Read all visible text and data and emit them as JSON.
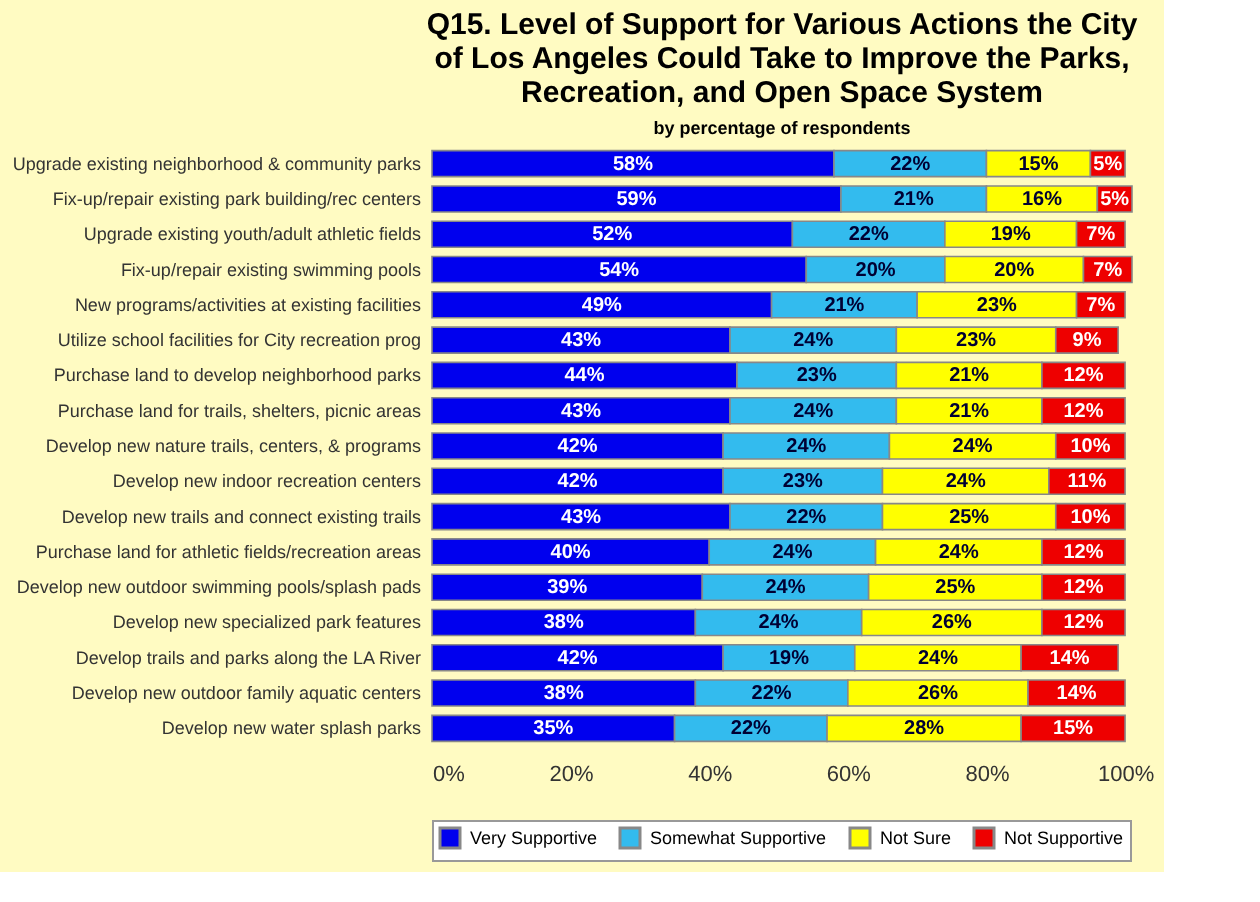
{
  "chart_data": {
    "type": "bar",
    "orientation": "horizontal",
    "stacked": true,
    "title": "Q15. Level of Support for Various Actions the City of Los Angeles Could Take to Improve the Parks, Recreation, and Open Space System",
    "subtitle": "by percentage of respondents",
    "categories": [
      "Upgrade existing neighborhood & community parks",
      "Fix-up/repair existing park building/rec centers",
      "Upgrade existing youth/adult athletic fields",
      "Fix-up/repair existing swimming pools",
      "New programs/activities at existing facilities",
      "Utilize school facilities for City recreation prog",
      "Purchase land to develop neighborhood parks",
      "Purchase land for trails, shelters, picnic areas",
      "Develop new nature trails, centers, & programs",
      "Develop new indoor recreation centers",
      "Develop new trails and connect existing trails",
      "Purchase land for athletic fields/recreation areas",
      "Develop new outdoor swimming pools/splash pads",
      "Develop new specialized park features",
      "Develop trails and parks along the LA River",
      "Develop new outdoor family aquatic centers",
      "Develop new water splash parks"
    ],
    "series": [
      {
        "name": "Very Supportive",
        "color": "#0000ee",
        "values": [
          58,
          59,
          52,
          54,
          49,
          43,
          44,
          43,
          42,
          42,
          43,
          40,
          39,
          38,
          42,
          38,
          35
        ],
        "value_labels": [
          "58%",
          "59%",
          "52%",
          "54%",
          "49%",
          "43%",
          "44%",
          "43%",
          "42%",
          "42%",
          "43%",
          "40%",
          "39%",
          "38%",
          "42%",
          "38%",
          "35%"
        ]
      },
      {
        "name": "Somewhat Supportive",
        "color": "#33bbee",
        "values": [
          22,
          21,
          22,
          20,
          21,
          24,
          23,
          24,
          24,
          23,
          22,
          24,
          24,
          24,
          19,
          22,
          22
        ],
        "value_labels": [
          "22%",
          "21%",
          "22%",
          "20%",
          "21%",
          "24%",
          "23%",
          "24%",
          "24%",
          "23%",
          "22%",
          "24%",
          "24%",
          "24%",
          "19%",
          "22%",
          "22%"
        ]
      },
      {
        "name": "Not Sure",
        "color": "#ffff00",
        "values": [
          15,
          16,
          19,
          20,
          23,
          23,
          21,
          21,
          24,
          24,
          25,
          24,
          25,
          26,
          24,
          26,
          28
        ],
        "value_labels": [
          "15%",
          "16%",
          "19%",
          "20%",
          "23%",
          "23%",
          "21%",
          "21%",
          "24%",
          "24%",
          "25%",
          "24%",
          "25%",
          "26%",
          "24%",
          "26%",
          "28%"
        ]
      },
      {
        "name": "Not Supportive",
        "color": "#ee0000",
        "values": [
          5,
          5,
          7,
          7,
          7,
          9,
          12,
          12,
          10,
          11,
          10,
          12,
          12,
          12,
          14,
          14,
          15
        ],
        "value_labels": [
          "5%",
          "5%",
          "7%",
          "7%",
          "7%",
          "9%",
          "12%",
          "12%",
          "10%",
          "11%",
          "10%",
          "12%",
          "12%",
          "12%",
          "14%",
          "14%",
          "15%"
        ]
      }
    ],
    "xlim": [
      0,
      101
    ],
    "xticks": [
      {
        "value": 0,
        "label": "0%"
      },
      {
        "value": 20,
        "label": "20%"
      },
      {
        "value": 40,
        "label": "40%"
      },
      {
        "value": 60,
        "label": "60%"
      },
      {
        "value": 80,
        "label": "80%"
      },
      {
        "value": 100,
        "label": "100%"
      }
    ],
    "grid": false,
    "legend": "bottom"
  }
}
